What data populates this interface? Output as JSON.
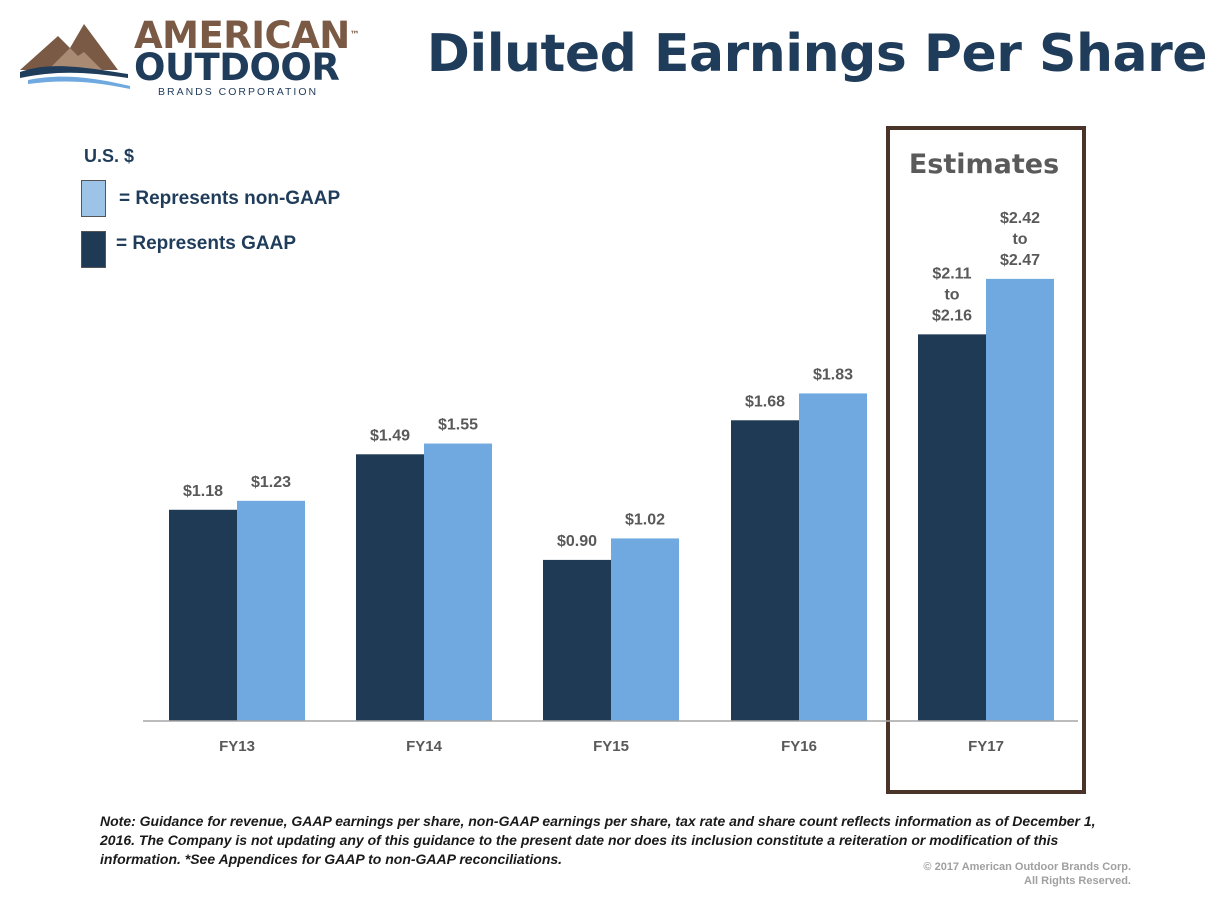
{
  "logo": {
    "line1": "AMERICAN",
    "tm": "™",
    "line2": "OUTDOOR",
    "line3": "BRANDS CORPORATION"
  },
  "title": "Diluted Earnings Per Share",
  "legend": {
    "currency": "U.S. $",
    "non_gaap_label": "= Represents non-GAAP",
    "gaap_label": "= Represents GAAP"
  },
  "estimates_label": "Estimates",
  "colors": {
    "gaap": "#1f3a55",
    "non_gaap": "#6fa9df",
    "legend_non_gaap": "#9dc3e6",
    "axis": "#a6a6a6",
    "label": "#595959",
    "estimates_border": "#4a3328"
  },
  "chart_data": {
    "type": "bar",
    "title": "Diluted Earnings Per Share",
    "ylabel": "U.S. $",
    "xlabel": "",
    "ylim": [
      0,
      2.6
    ],
    "grid": false,
    "legend": "top-left",
    "categories": [
      "FY13",
      "FY14",
      "FY15",
      "FY16",
      "FY17"
    ],
    "series": [
      {
        "name": "GAAP",
        "values": [
          1.18,
          1.49,
          0.9,
          1.68,
          2.16
        ],
        "labels": [
          [
            "$1.18"
          ],
          [
            "$1.49"
          ],
          [
            "$0.90"
          ],
          [
            "$1.68"
          ],
          [
            "$2.11",
            "to",
            "$2.16"
          ]
        ]
      },
      {
        "name": "non-GAAP",
        "values": [
          1.23,
          1.55,
          1.02,
          1.83,
          2.47
        ],
        "labels": [
          [
            "$1.23"
          ],
          [
            "$1.55"
          ],
          [
            "$1.02"
          ],
          [
            "$1.83"
          ],
          [
            "$2.42",
            "to",
            "$2.47"
          ]
        ]
      }
    ],
    "annotations": [
      "Estimates"
    ]
  },
  "note": "Note:  Guidance for revenue, GAAP earnings per share, non-GAAP earnings per share, tax rate and share count reflects information as of December 1, 2016.  The Company is not updating any of this guidance to the present date nor does its inclusion constitute a reiteration or modification of this information.  *See Appendices for GAAP to non-GAAP reconciliations.",
  "copyright": {
    "line1": "© 2017 American Outdoor Brands Corp.",
    "line2": "All Rights Reserved."
  }
}
